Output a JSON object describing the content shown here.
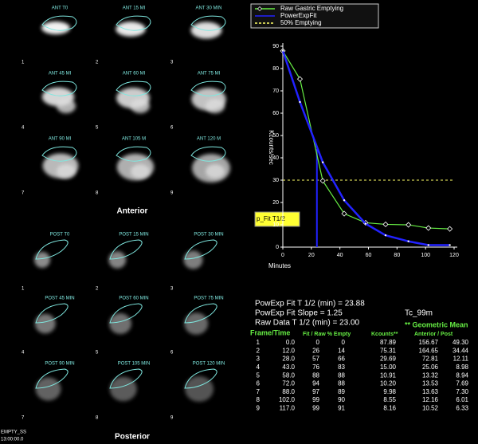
{
  "anterior": {
    "caption": "Anterior",
    "frames": [
      {
        "label": "ANT T0",
        "number": "1"
      },
      {
        "label": "ANT 15 MI",
        "number": "2"
      },
      {
        "label": "ANT 30 MIN",
        "number": "3"
      },
      {
        "label": "ANT 45 MI",
        "number": "4"
      },
      {
        "label": "ANT 60 MI",
        "number": "5"
      },
      {
        "label": "ANT 75 MI",
        "number": "6"
      },
      {
        "label": "ANT 90 MI",
        "number": "7"
      },
      {
        "label": "ANT 105 M",
        "number": "8"
      },
      {
        "label": "ANT 120 M",
        "number": "9"
      }
    ]
  },
  "posterior": {
    "caption": "Posterior",
    "frames": [
      {
        "label": "POST T0",
        "number": "1"
      },
      {
        "label": "POST 15 MIN",
        "number": "2"
      },
      {
        "label": "POST 30 MIN",
        "number": "3"
      },
      {
        "label": "POST 45 MIN",
        "number": "4"
      },
      {
        "label": "POST 60 MIN",
        "number": "5"
      },
      {
        "label": "POST 75 MIN",
        "number": "6"
      },
      {
        "label": "POST 90 MIN",
        "number": "7"
      },
      {
        "label": "POST 105 MIN",
        "number": "8"
      },
      {
        "label": "POST 120 MIN",
        "number": "9"
      }
    ]
  },
  "footer": [
    "EMPTY_SS",
    "13:00:00.0"
  ],
  "chart_data": {
    "type": "line",
    "xlabel": "Minutes",
    "ylabel": "Kcounts/sec",
    "x": [
      0,
      12,
      28,
      43,
      58,
      72,
      88,
      102,
      117
    ],
    "series": [
      {
        "name": "Raw Gastric Emptying",
        "color": "#66ee44",
        "values": [
          87.89,
          75.31,
          29.69,
          15.0,
          10.91,
          10.2,
          9.98,
          8.55,
          8.16
        ]
      },
      {
        "name": "PowerExpFit",
        "color": "#2222ff",
        "values": [
          88,
          65,
          38,
          21,
          10.5,
          5.3,
          2.6,
          0.9,
          0.9
        ]
      }
    ],
    "reference_line": {
      "name": "50% Emptying",
      "color": "#ffff66",
      "value": 30
    },
    "fit_half_time": 23.88,
    "annotation": "p_Fit T1/2",
    "xlim": [
      0,
      120
    ],
    "xticks": [
      0,
      20,
      40,
      60,
      80,
      100,
      120
    ],
    "ylim": [
      0,
      90
    ],
    "yticks": [
      0,
      10,
      20,
      30,
      40,
      50,
      60,
      70,
      80,
      90
    ]
  },
  "summary": {
    "lines": [
      "PowExp Fit T 1/2 (min) = 23.88",
      "PowExp Fit Slope = 1.25",
      "Raw Data T 1/2 (min) = 23.00"
    ],
    "isotope": "Tc_99m"
  },
  "table": {
    "headers": [
      "Frame/Time",
      "Fit / Raw % Empty",
      "Kcounts**",
      "** Geometric Mean",
      "Anterior / Post"
    ],
    "rows": [
      [
        "1",
        "0.0",
        "0",
        "0",
        "87.89",
        "156.67",
        "49.30"
      ],
      [
        "2",
        "12.0",
        "26",
        "14",
        "75.31",
        "164.65",
        "34.44"
      ],
      [
        "3",
        "28.0",
        "57",
        "66",
        "29.69",
        "72.81",
        "12.11"
      ],
      [
        "4",
        "43.0",
        "76",
        "83",
        "15.00",
        "25.06",
        "8.98"
      ],
      [
        "5",
        "58.0",
        "88",
        "88",
        "10.91",
        "13.32",
        "8.94"
      ],
      [
        "6",
        "72.0",
        "94",
        "88",
        "10.20",
        "13.53",
        "7.69"
      ],
      [
        "7",
        "88.0",
        "97",
        "89",
        "9.98",
        "13.63",
        "7.30"
      ],
      [
        "8",
        "102.0",
        "99",
        "90",
        "8.55",
        "12.16",
        "6.01"
      ],
      [
        "9",
        "117.0",
        "99",
        "91",
        "8.16",
        "10.52",
        "6.33"
      ]
    ]
  }
}
